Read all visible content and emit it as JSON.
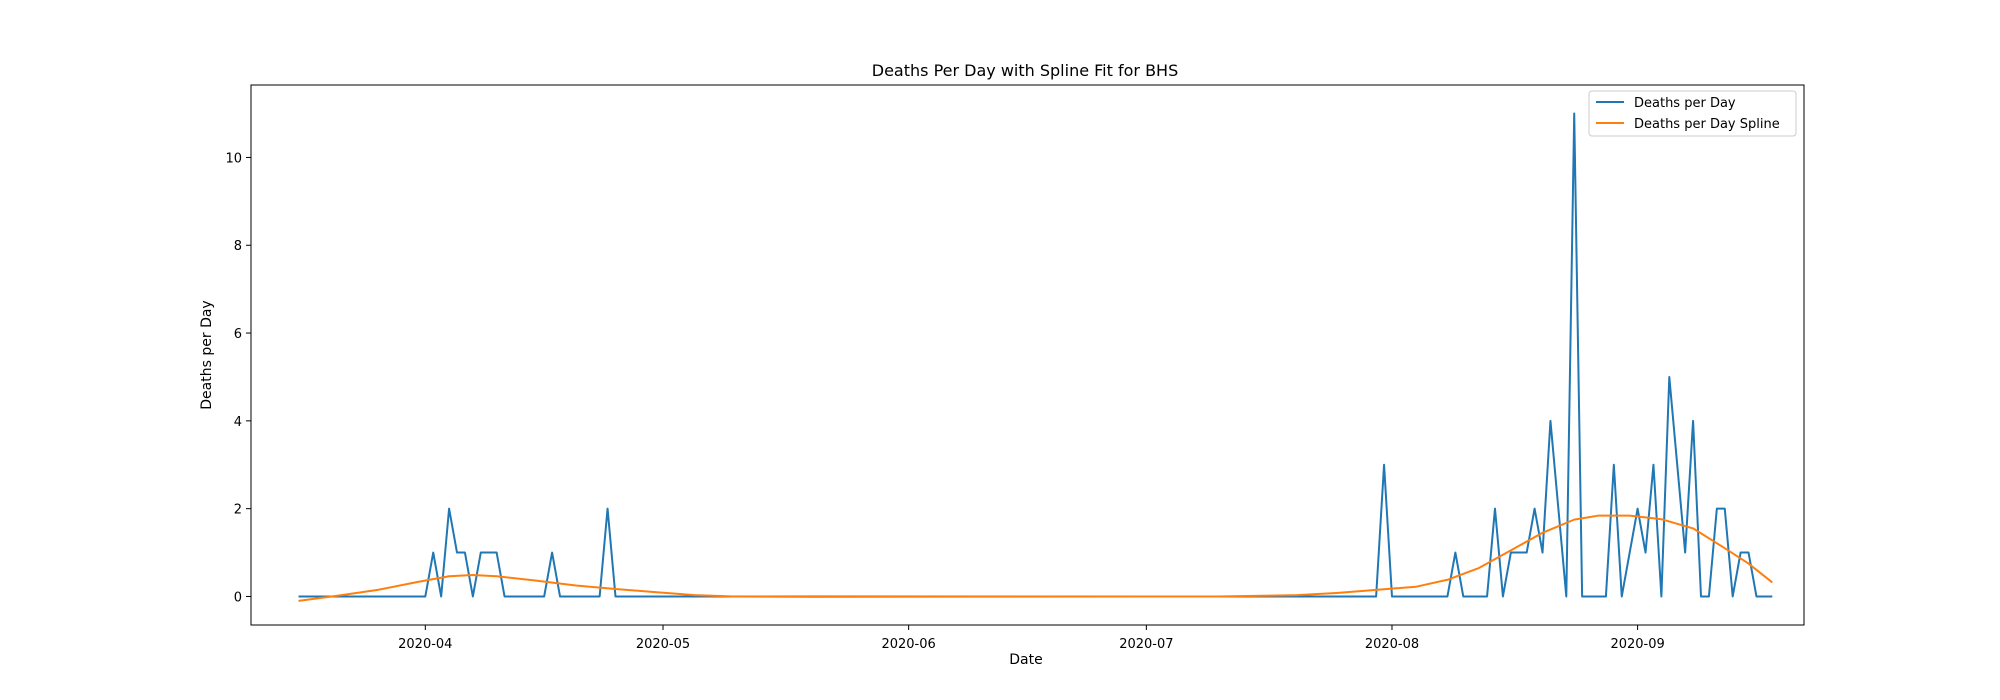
{
  "chart_data": {
    "type": "line",
    "title": "Deaths Per Day with Spline Fit for BHS",
    "xlabel": "Date",
    "ylabel": "Deaths per Day",
    "xlim": [
      "2020-03-10",
      "2020-09-22"
    ],
    "ylim": [
      -0.65,
      11.65
    ],
    "x_ticks": [
      "2020-04-01",
      "2020-05-01",
      "2020-06-01",
      "2020-07-01",
      "2020-08-01",
      "2020-09-01"
    ],
    "x_tick_labels": [
      "2020-04",
      "2020-05",
      "2020-06",
      "2020-07",
      "2020-08",
      "2020-09"
    ],
    "y_ticks": [
      0,
      2,
      4,
      6,
      8,
      10
    ],
    "y_tick_labels": [
      "0",
      "2",
      "4",
      "6",
      "8",
      "10"
    ],
    "grid": false,
    "legend_position": "upper right",
    "colors": {
      "deaths": "#1f77b4",
      "spline": "#ff7f0e"
    },
    "series": [
      {
        "name": "Deaths per Day",
        "points": [
          [
            "2020-03-16",
            0
          ],
          [
            "2020-04-01",
            0
          ],
          [
            "2020-04-02",
            1
          ],
          [
            "2020-04-03",
            0
          ],
          [
            "2020-04-04",
            2
          ],
          [
            "2020-04-05",
            1
          ],
          [
            "2020-04-06",
            1
          ],
          [
            "2020-04-07",
            0
          ],
          [
            "2020-04-08",
            1
          ],
          [
            "2020-04-09",
            1
          ],
          [
            "2020-04-10",
            1
          ],
          [
            "2020-04-11",
            0
          ],
          [
            "2020-04-16",
            0
          ],
          [
            "2020-04-17",
            1
          ],
          [
            "2020-04-18",
            0
          ],
          [
            "2020-04-23",
            0
          ],
          [
            "2020-04-24",
            2
          ],
          [
            "2020-04-25",
            0
          ],
          [
            "2020-07-30",
            0
          ],
          [
            "2020-07-31",
            3
          ],
          [
            "2020-08-01",
            0
          ],
          [
            "2020-08-08",
            0
          ],
          [
            "2020-08-09",
            1
          ],
          [
            "2020-08-10",
            0
          ],
          [
            "2020-08-13",
            0
          ],
          [
            "2020-08-14",
            2
          ],
          [
            "2020-08-15",
            0
          ],
          [
            "2020-08-16",
            1
          ],
          [
            "2020-08-17",
            1
          ],
          [
            "2020-08-18",
            1
          ],
          [
            "2020-08-19",
            2
          ],
          [
            "2020-08-20",
            1
          ],
          [
            "2020-08-21",
            4
          ],
          [
            "2020-08-22",
            2
          ],
          [
            "2020-08-23",
            0
          ],
          [
            "2020-08-24",
            11
          ],
          [
            "2020-08-25",
            0
          ],
          [
            "2020-08-28",
            0
          ],
          [
            "2020-08-29",
            3
          ],
          [
            "2020-08-30",
            0
          ],
          [
            "2020-08-31",
            1
          ],
          [
            "2020-09-01",
            2
          ],
          [
            "2020-09-02",
            1
          ],
          [
            "2020-09-03",
            3
          ],
          [
            "2020-09-04",
            0
          ],
          [
            "2020-09-05",
            5
          ],
          [
            "2020-09-06",
            3
          ],
          [
            "2020-09-07",
            1
          ],
          [
            "2020-09-08",
            4
          ],
          [
            "2020-09-09",
            0
          ],
          [
            "2020-09-10",
            0
          ],
          [
            "2020-09-11",
            2
          ],
          [
            "2020-09-12",
            2
          ],
          [
            "2020-09-13",
            0
          ],
          [
            "2020-09-14",
            1
          ],
          [
            "2020-09-15",
            1
          ],
          [
            "2020-09-16",
            0
          ],
          [
            "2020-09-18",
            0
          ]
        ]
      },
      {
        "name": "Deaths per Day Spline",
        "points": [
          [
            "2020-03-16",
            -0.1
          ],
          [
            "2020-03-21",
            0.02
          ],
          [
            "2020-03-26",
            0.15
          ],
          [
            "2020-03-31",
            0.33
          ],
          [
            "2020-04-04",
            0.46
          ],
          [
            "2020-04-07",
            0.49
          ],
          [
            "2020-04-10",
            0.46
          ],
          [
            "2020-04-15",
            0.36
          ],
          [
            "2020-04-20",
            0.25
          ],
          [
            "2020-04-25",
            0.17
          ],
          [
            "2020-04-30",
            0.1
          ],
          [
            "2020-05-05",
            0.03
          ],
          [
            "2020-05-10",
            0.0
          ],
          [
            "2020-05-20",
            -0.01
          ],
          [
            "2020-06-10",
            -0.005
          ],
          [
            "2020-07-10",
            0.0
          ],
          [
            "2020-07-20",
            0.03
          ],
          [
            "2020-07-25",
            0.08
          ],
          [
            "2020-07-30",
            0.15
          ],
          [
            "2020-08-04",
            0.22
          ],
          [
            "2020-08-08",
            0.38
          ],
          [
            "2020-08-12",
            0.65
          ],
          [
            "2020-08-16",
            1.05
          ],
          [
            "2020-08-20",
            1.45
          ],
          [
            "2020-08-24",
            1.75
          ],
          [
            "2020-08-27",
            1.84
          ],
          [
            "2020-08-31",
            1.84
          ],
          [
            "2020-09-04",
            1.76
          ],
          [
            "2020-09-08",
            1.55
          ],
          [
            "2020-09-12",
            1.1
          ],
          [
            "2020-09-15",
            0.75
          ],
          [
            "2020-09-18",
            0.32
          ]
        ]
      }
    ]
  }
}
